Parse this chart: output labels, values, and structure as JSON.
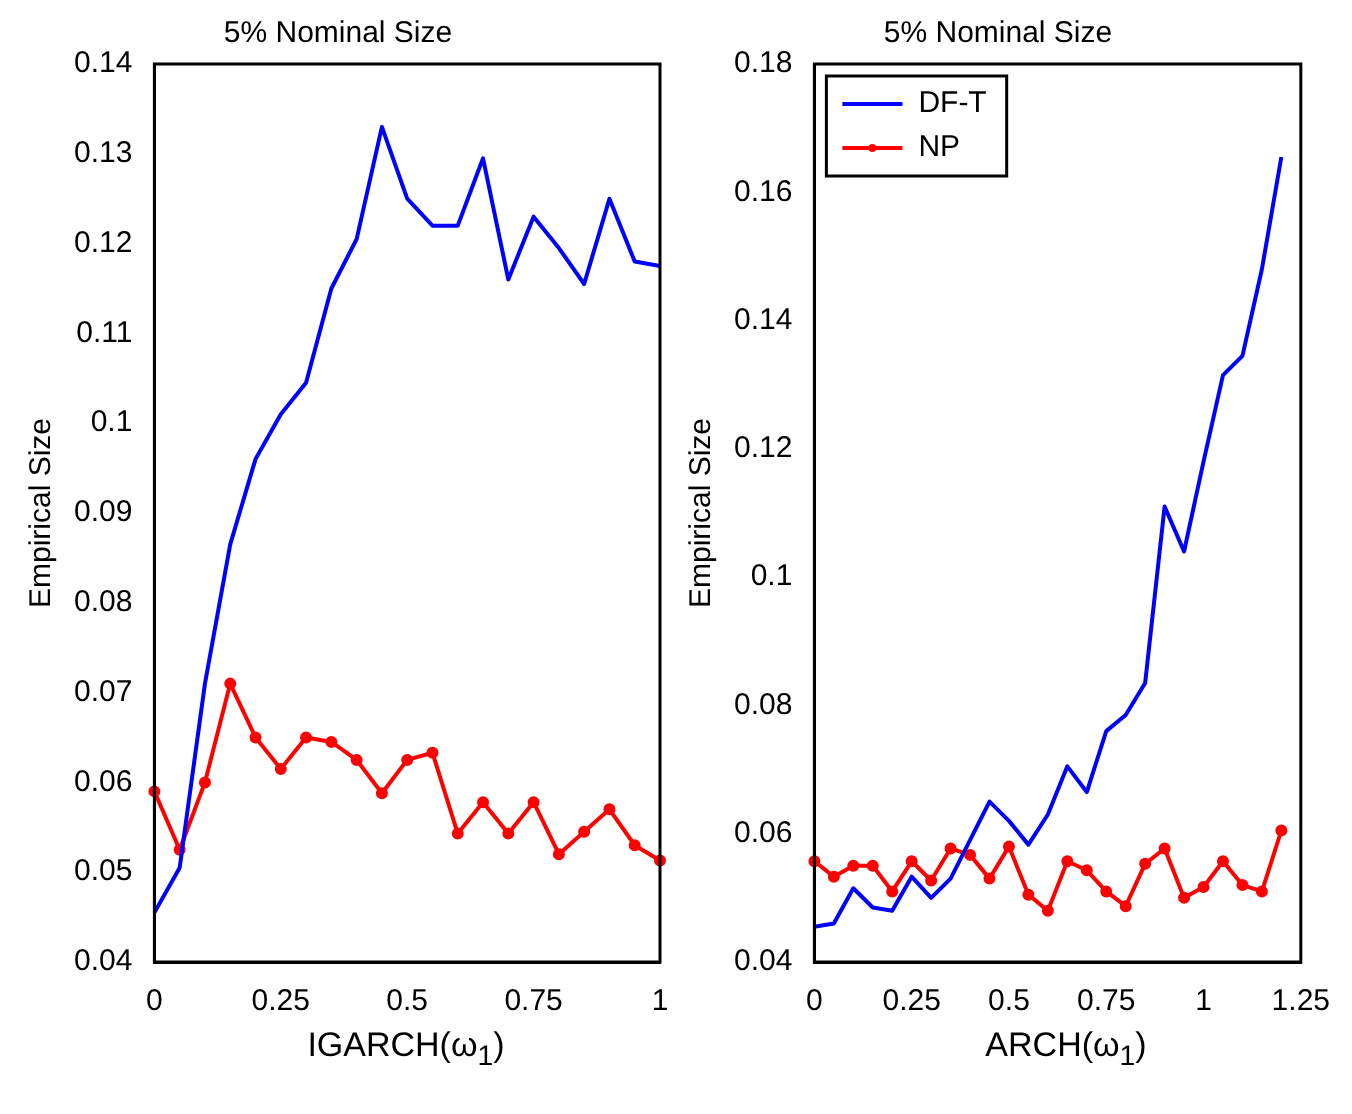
{
  "chart_data": [
    {
      "type": "line",
      "title": "5% Nominal Size",
      "xlabel": "IGARCH(ω$_{1}$)",
      "ylabel": "Empirical Size",
      "x": [
        0,
        0.05,
        0.1,
        0.15,
        0.2,
        0.25,
        0.3,
        0.35,
        0.4,
        0.45,
        0.5,
        0.55,
        0.6,
        0.65,
        0.7,
        0.75,
        0.8,
        0.85,
        0.9,
        0.95,
        1.0
      ],
      "series": [
        {
          "color": "#0000ff",
          "marker": "none",
          "values": [
            0.0455,
            0.0505,
            0.071,
            0.0865,
            0.096,
            0.101,
            0.1045,
            0.115,
            0.1205,
            0.133,
            0.125,
            0.122,
            0.122,
            0.1295,
            0.116,
            0.123,
            0.1195,
            0.1155,
            0.125,
            0.118,
            0.1175
          ]
        },
        {
          "color": "#ff0000",
          "marker": "circle",
          "values": [
            0.059,
            0.0525,
            0.06,
            0.071,
            0.065,
            0.0615,
            0.065,
            0.0645,
            0.0625,
            0.0588,
            0.0625,
            0.0633,
            0.0543,
            0.0578,
            0.0543,
            0.0578,
            0.052,
            0.0545,
            0.057,
            0.053,
            0.0513
          ]
        }
      ],
      "xlim": [
        0,
        1
      ],
      "xticks": [
        0,
        0.25,
        0.5,
        0.75,
        1
      ],
      "ylim": [
        0.04,
        0.14
      ],
      "yticks": [
        0.04,
        0.05,
        0.06,
        0.07,
        0.08,
        0.09,
        0.1,
        0.11,
        0.12,
        0.13,
        0.14
      ],
      "grid": false,
      "legend": false
    },
    {
      "type": "line",
      "title": "5% Nominal Size",
      "xlabel": "ARCH(ω$_{1}$)",
      "ylabel": "Empirical Size",
      "x": [
        0,
        0.05,
        0.1,
        0.15,
        0.2,
        0.25,
        0.3,
        0.35,
        0.4,
        0.45,
        0.5,
        0.55,
        0.6,
        0.65,
        0.7,
        0.75,
        0.8,
        0.85,
        0.9,
        0.95,
        1.0,
        1.05,
        1.1,
        1.15,
        1.2
      ],
      "series": [
        {
          "name": "DF-T",
          "color": "#0000ff",
          "marker": "none",
          "values": [
            0.0455,
            0.046,
            0.0515,
            0.0485,
            0.048,
            0.0533,
            0.05,
            0.053,
            0.059,
            0.065,
            0.062,
            0.0583,
            0.063,
            0.0705,
            0.0665,
            0.076,
            0.0785,
            0.0835,
            0.111,
            0.104,
            0.118,
            0.1315,
            0.1345,
            0.148,
            0.1655
          ]
        },
        {
          "name": "NP",
          "color": "#ff0000",
          "marker": "circle",
          "values": [
            0.0557,
            0.0533,
            0.055,
            0.055,
            0.051,
            0.0557,
            0.0527,
            0.0577,
            0.0567,
            0.053,
            0.058,
            0.0505,
            0.048,
            0.0557,
            0.0543,
            0.051,
            0.0487,
            0.0553,
            0.0577,
            0.05,
            0.0517,
            0.0557,
            0.052,
            0.051,
            0.0605
          ]
        }
      ],
      "xlim": [
        0,
        1.25
      ],
      "xticks": [
        0,
        0.25,
        0.5,
        0.75,
        1,
        1.25
      ],
      "ylim": [
        0.04,
        0.18
      ],
      "yticks": [
        0.04,
        0.06,
        0.08,
        0.1,
        0.12,
        0.14,
        0.16,
        0.18
      ],
      "grid": false,
      "legend": "top left"
    }
  ]
}
